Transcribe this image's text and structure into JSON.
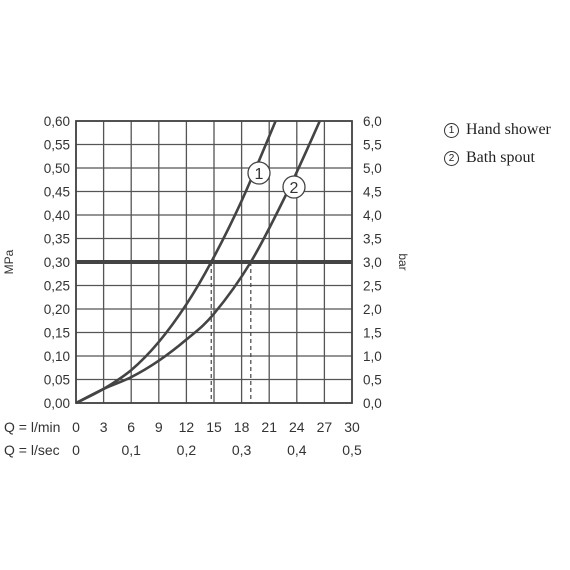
{
  "chart_data": {
    "type": "line",
    "ylabel_left": "MPa",
    "ylabel_right": "bar",
    "x_row1_label": "Q = l/min",
    "x_row2_label": "Q = l/sec",
    "x_ticks_lmin": [
      "0",
      "3",
      "6",
      "9",
      "12",
      "15",
      "18",
      "21",
      "24",
      "27",
      "30"
    ],
    "x_ticks_lsec": [
      "0",
      "0,1",
      "0,2",
      "0,3",
      "0,4",
      "0,5"
    ],
    "y_ticks_mpa": [
      "0,00",
      "0,05",
      "0,10",
      "0,15",
      "0,20",
      "0,25",
      "0,30",
      "0,35",
      "0,40",
      "0,45",
      "0,50",
      "0,55",
      "0,60"
    ],
    "y_ticks_bar": [
      "0,0",
      "0,5",
      "1,0",
      "1,5",
      "2,0",
      "2,5",
      "3,0",
      "3,5",
      "4,0",
      "4,5",
      "5,0",
      "5,5",
      "6,0"
    ],
    "xlim": [
      0,
      30
    ],
    "ylim": [
      0,
      0.6
    ],
    "grid": true,
    "reference_line": {
      "y": 0.3,
      "x_intersections": [
        14.7,
        19.0
      ]
    },
    "series": [
      {
        "name": "Hand shower",
        "label": "1",
        "x": [
          0,
          3,
          6,
          9,
          12,
          14.7,
          18,
          21.7
        ],
        "y": [
          0,
          0.03,
          0.07,
          0.13,
          0.21,
          0.3,
          0.43,
          0.6
        ]
      },
      {
        "name": "Bath spout",
        "label": "2",
        "x": [
          0,
          3,
          6,
          9,
          12,
          15,
          19,
          23,
          26.5
        ],
        "y": [
          0,
          0.03,
          0.055,
          0.09,
          0.135,
          0.19,
          0.3,
          0.45,
          0.6
        ]
      }
    ]
  },
  "legend": [
    {
      "mark": "1",
      "label": "Hand shower"
    },
    {
      "mark": "2",
      "label": "Bath spout"
    }
  ]
}
